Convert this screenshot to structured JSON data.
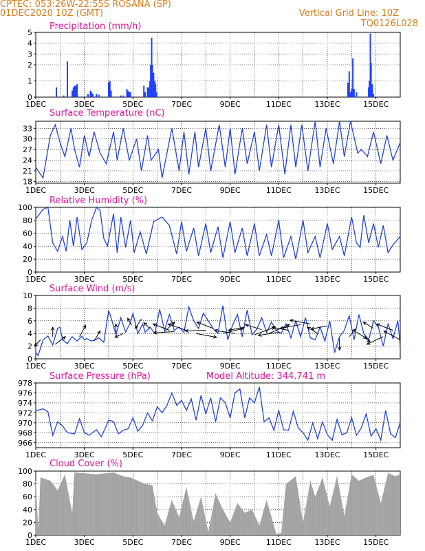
{
  "header": {
    "line1": "CPTEC:   053:26W-22:55S   ROSANA (SP)",
    "line2": "01DEC2020 10Z (GMT)",
    "grid_note": "Vertical Grid Line: 10Z",
    "code": "TQ0126L028"
  },
  "colors": {
    "header": "#e07a1a",
    "title": "#e0129a",
    "series": "#2040e0",
    "bars": "#2040ff",
    "cloud": "#a8a8a8",
    "wind_arrow": "#000000"
  },
  "chart_data": [
    {
      "type": "bar",
      "title": "Precipitation (mm/h)",
      "x_unit": "days since 01DEC 10Z",
      "xlim": [
        0,
        15
      ],
      "xticks": [
        "1DEC",
        "3DEC",
        "5DEC",
        "7DEC",
        "9DEC",
        "11DEC",
        "13DEC",
        "15DEC"
      ],
      "ylim": [
        0,
        5
      ],
      "yticks": [
        0,
        1,
        2,
        3,
        4,
        5
      ],
      "y_scale": "piecewise: 0-1-2 linear, 2 to 5 compressed",
      "bars": [
        [
          0.85,
          0.6
        ],
        [
          1.15,
          0.1
        ],
        [
          1.3,
          2.3
        ],
        [
          1.5,
          0.4
        ],
        [
          1.55,
          0.6
        ],
        [
          1.6,
          0.7
        ],
        [
          1.65,
          0.7
        ],
        [
          1.7,
          0.8
        ],
        [
          2.15,
          0.2
        ],
        [
          2.25,
          0.4
        ],
        [
          2.3,
          0.3
        ],
        [
          2.35,
          0.2
        ],
        [
          2.5,
          0.2
        ],
        [
          2.6,
          0.15
        ],
        [
          3.0,
          0.9
        ],
        [
          3.05,
          1.0
        ],
        [
          3.1,
          0.4
        ],
        [
          3.5,
          0.1
        ],
        [
          3.6,
          0.1
        ],
        [
          3.75,
          0.5
        ],
        [
          3.8,
          0.4
        ],
        [
          3.85,
          0.3
        ],
        [
          3.9,
          0.3
        ],
        [
          4.45,
          0.7
        ],
        [
          4.5,
          0.3
        ],
        [
          4.6,
          0.6
        ],
        [
          4.65,
          0.6
        ],
        [
          4.7,
          1.0
        ],
        [
          4.73,
          2.0
        ],
        [
          4.77,
          4.5
        ],
        [
          4.8,
          2.0
        ],
        [
          4.85,
          1.5
        ],
        [
          4.9,
          1.0
        ],
        [
          4.93,
          0.8
        ],
        [
          4.97,
          0.3
        ],
        [
          12.85,
          0.9
        ],
        [
          12.9,
          1.6
        ],
        [
          12.95,
          0.3
        ],
        [
          13.0,
          0.5
        ],
        [
          13.05,
          2.6
        ],
        [
          13.1,
          0.5
        ],
        [
          13.2,
          0.3
        ],
        [
          13.7,
          0.6
        ],
        [
          13.73,
          1.0
        ],
        [
          13.77,
          4.9
        ],
        [
          13.8,
          2.2
        ],
        [
          13.85,
          0.8
        ],
        [
          13.9,
          0.2
        ]
      ]
    },
    {
      "type": "line",
      "title": "Surface Temperature (nC)",
      "xlim": [
        0,
        15
      ],
      "ylim": [
        17.5,
        35
      ],
      "yticks": [
        18,
        21,
        24,
        27,
        30,
        33
      ],
      "series": [
        {
          "x": [
            0,
            0.3,
            0.6,
            0.8,
            1.0,
            1.2,
            1.45,
            1.6,
            1.8,
            2.0,
            2.2,
            2.4,
            2.65,
            2.9,
            3.2,
            3.35,
            3.6,
            3.85,
            4.15,
            4.35,
            4.6,
            4.75,
            5.05,
            5.2,
            5.6,
            5.9,
            6.1,
            6.3,
            6.55,
            6.7,
            7.0,
            7.2,
            7.55,
            7.8,
            8.0,
            8.2,
            8.5,
            8.7,
            9.0,
            9.2,
            9.5,
            9.7,
            10.0,
            10.25,
            10.5,
            10.7,
            10.95,
            11.2,
            11.5,
            11.7,
            11.95,
            12.25,
            12.5,
            12.7,
            12.95,
            13.25,
            13.4,
            13.65,
            13.9,
            14.2,
            14.45,
            14.7,
            15.0
          ],
          "y": [
            22,
            19,
            31,
            34,
            29,
            25,
            33,
            27,
            22,
            31,
            25,
            32,
            26,
            23,
            32,
            24,
            33,
            24,
            30,
            21,
            31,
            24,
            27,
            19,
            33,
            21,
            32,
            20,
            32,
            22,
            33,
            21,
            34,
            22,
            33,
            20,
            33,
            23,
            32,
            21,
            34,
            22,
            34,
            20,
            34,
            22,
            34,
            21,
            35,
            22,
            33,
            23,
            35,
            25,
            35,
            26,
            27,
            25,
            32,
            23,
            31,
            24,
            29
          ]
        }
      ]
    },
    {
      "type": "line",
      "title": "Relative Humidity (%)",
      "xlim": [
        0,
        15
      ],
      "ylim": [
        0,
        100
      ],
      "yticks": [
        0,
        20,
        40,
        60,
        80,
        100
      ],
      "series": [
        {
          "x": [
            0,
            0.3,
            0.5,
            0.7,
            0.9,
            1.1,
            1.25,
            1.4,
            1.55,
            1.7,
            1.9,
            2.1,
            2.3,
            2.5,
            2.65,
            2.8,
            2.95,
            3.2,
            3.35,
            3.5,
            3.7,
            3.9,
            4.05,
            4.3,
            4.55,
            4.85,
            5.2,
            5.5,
            5.8,
            6.0,
            6.2,
            6.5,
            6.7,
            7.0,
            7.2,
            7.5,
            7.7,
            8.0,
            8.2,
            8.5,
            8.7,
            9.0,
            9.2,
            9.5,
            9.7,
            10.0,
            10.2,
            10.5,
            10.7,
            11.0,
            11.2,
            11.5,
            11.7,
            12.0,
            12.2,
            12.5,
            12.7,
            13.0,
            13.2,
            13.35,
            13.5,
            13.7,
            13.9,
            14.1,
            14.3,
            14.5,
            14.7,
            15.0
          ],
          "y": [
            82,
            97,
            100,
            45,
            32,
            55,
            32,
            80,
            40,
            85,
            35,
            45,
            80,
            100,
            95,
            52,
            40,
            90,
            30,
            85,
            38,
            80,
            30,
            62,
            28,
            78,
            85,
            72,
            28,
            78,
            32,
            68,
            25,
            75,
            30,
            70,
            22,
            78,
            30,
            68,
            25,
            75,
            25,
            58,
            25,
            80,
            22,
            55,
            20,
            80,
            30,
            55,
            22,
            75,
            35,
            55,
            25,
            85,
            45,
            38,
            88,
            45,
            75,
            38,
            72,
            30,
            42,
            55
          ]
        }
      ]
    },
    {
      "type": "line",
      "title": "Surface Wind (m/s)",
      "xlim": [
        0,
        15
      ],
      "ylim": [
        0,
        10
      ],
      "yticks": [
        0,
        2,
        4,
        6,
        8,
        10
      ],
      "series": [
        {
          "x": [
            0,
            0.1,
            0.3,
            0.5,
            0.7,
            0.9,
            1.0,
            1.1,
            1.3,
            1.5,
            1.7,
            1.9,
            2.0,
            2.1,
            2.3,
            2.5,
            2.6,
            2.8,
            3.0,
            3.1,
            3.3,
            3.5,
            3.7,
            3.9,
            4.0,
            4.2,
            4.4,
            4.5,
            4.7,
            4.9,
            5.1,
            5.3,
            5.5,
            5.7,
            5.9,
            6.1,
            6.3,
            6.5,
            6.7,
            6.9,
            7.1,
            7.3,
            7.5,
            7.7,
            7.9,
            8.1,
            8.3,
            8.5,
            8.7,
            8.9,
            9.1,
            9.3,
            9.5,
            9.7,
            9.9,
            10.1,
            10.3,
            10.5,
            10.7,
            10.9,
            11.1,
            11.3,
            11.5,
            11.7,
            11.9,
            12.1,
            12.3,
            12.5,
            12.7,
            12.9,
            13.1,
            13.3,
            13.5,
            13.7,
            13.9,
            14.1,
            14.3,
            14.5,
            14.7,
            14.9,
            15.0
          ],
          "y": [
            1.0,
            0.5,
            3.0,
            3.6,
            2.2,
            4.8,
            5.0,
            3.0,
            2.4,
            3.5,
            2.8,
            3.6,
            3.0,
            3.2,
            2.8,
            3.1,
            3.3,
            2.6,
            7.6,
            6.5,
            3.8,
            6.5,
            4.2,
            5.8,
            7.2,
            4.0,
            5.5,
            4.2,
            5.0,
            4.0,
            7.8,
            4.5,
            7.0,
            4.5,
            5.0,
            4.2,
            8.2,
            6.0,
            4.8,
            7.2,
            6.0,
            4.8,
            4.0,
            8.4,
            3.0,
            5.3,
            7.0,
            3.5,
            7.7,
            3.8,
            4.7,
            6.5,
            4.2,
            5.8,
            4.5,
            4.0,
            5.5,
            3.3,
            6.0,
            3.5,
            6.5,
            3.3,
            3.0,
            5.0,
            2.8,
            6.0,
            1.0,
            3.5,
            4.5,
            6.8,
            3.0,
            7.0,
            4.0,
            3.0,
            6.0,
            5.0,
            2.0,
            5.5,
            3.2,
            6.0,
            2.0
          ]
        }
      ],
      "arrows": [
        [
          0.2,
          3.0,
          -0.3,
          -1.0
        ],
        [
          0.7,
          3.5,
          0.0,
          1.5
        ],
        [
          0.8,
          2.3,
          0.5,
          1.2
        ],
        [
          1.8,
          3.5,
          0.3,
          1.8
        ],
        [
          2.4,
          2.8,
          0.3,
          1.6
        ],
        [
          3.3,
          4.2,
          0.0,
          1.3
        ],
        [
          3.6,
          4.0,
          -0.4,
          -0.6
        ],
        [
          3.95,
          5.3,
          -0.2,
          1.1
        ],
        [
          4.35,
          6.3,
          -0.3,
          -1.5
        ],
        [
          4.7,
          4.8,
          -0.3,
          0.9
        ],
        [
          5.3,
          4.3,
          0.5,
          1.5
        ],
        [
          5.5,
          4.5,
          -0.8,
          1.0
        ],
        [
          5.7,
          4.3,
          -1.0,
          -0.2
        ],
        [
          6.2,
          4.5,
          -0.9,
          1.0
        ],
        [
          6.6,
          4.0,
          1.0,
          -0.6
        ],
        [
          7.0,
          4.5,
          -1.0,
          -0.1
        ],
        [
          7.3,
          4.8,
          -0.8,
          1.0
        ],
        [
          7.7,
          4.0,
          1.0,
          0.8
        ],
        [
          8.2,
          4.0,
          -1.0,
          0.5
        ],
        [
          8.6,
          5.0,
          -0.8,
          -0.5
        ],
        [
          9.0,
          3.8,
          1.0,
          1.2
        ],
        [
          9.3,
          4.6,
          -0.8,
          0.8
        ],
        [
          9.6,
          4.0,
          1.0,
          1.4
        ],
        [
          10.0,
          4.2,
          -1.0,
          -0.5
        ],
        [
          10.4,
          4.5,
          -0.8,
          0.5
        ],
        [
          10.9,
          5.4,
          -1.0,
          -0.6
        ],
        [
          11.3,
          5.5,
          -1.0,
          0.6
        ],
        [
          11.6,
          4.0,
          -0.5,
          1.0
        ],
        [
          12.0,
          5.2,
          -0.8,
          -0.5
        ],
        [
          12.5,
          3.2,
          0.0,
          -1.8
        ],
        [
          12.9,
          3.5,
          0.3,
          1.2
        ],
        [
          13.2,
          4.2,
          0.5,
          -1.0
        ],
        [
          13.5,
          3.5,
          0.3,
          -0.8
        ],
        [
          13.9,
          4.8,
          -0.5,
          1.0
        ],
        [
          14.3,
          3.5,
          -0.8,
          -1.2
        ],
        [
          14.7,
          4.5,
          -0.8,
          1.0
        ],
        [
          15.0,
          3.0,
          -0.8,
          1.4
        ]
      ]
    },
    {
      "type": "line",
      "title": "Surface Pressure (hPa)",
      "annotation": "Model Altitude: 344.741  m",
      "xlim": [
        0,
        15
      ],
      "ylim": [
        965,
        978
      ],
      "yticks": [
        966,
        968,
        970,
        972,
        974,
        976,
        978
      ],
      "series": [
        {
          "x": [
            0,
            0.3,
            0.5,
            0.7,
            0.9,
            1.1,
            1.3,
            1.6,
            1.8,
            2.0,
            2.2,
            2.5,
            2.7,
            3.0,
            3.2,
            3.4,
            3.6,
            3.8,
            4.0,
            4.2,
            4.4,
            4.6,
            4.8,
            5.0,
            5.2,
            5.4,
            5.6,
            5.8,
            6.0,
            6.2,
            6.4,
            6.6,
            6.8,
            7.0,
            7.2,
            7.4,
            7.6,
            7.8,
            8.0,
            8.2,
            8.4,
            8.6,
            8.8,
            9.0,
            9.2,
            9.4,
            9.6,
            9.8,
            10.0,
            10.2,
            10.4,
            10.6,
            10.8,
            11.0,
            11.2,
            11.4,
            11.6,
            11.8,
            12.0,
            12.2,
            12.4,
            12.6,
            12.8,
            13.0,
            13.2,
            13.4,
            13.6,
            13.8,
            14.0,
            14.2,
            14.4,
            14.6,
            14.8,
            15.0
          ],
          "y": [
            972.4,
            972.8,
            972.2,
            967.5,
            970.2,
            969.4,
            968.0,
            967.8,
            970.8,
            968.0,
            967.5,
            968.6,
            967.2,
            970.5,
            970.3,
            967.8,
            968.5,
            968.8,
            971.0,
            968.3,
            969.5,
            972.0,
            970.4,
            973.2,
            972.0,
            973.5,
            976.0,
            973.5,
            974.5,
            972.5,
            974.8,
            970.5,
            975.5,
            971.8,
            975.0,
            970.2,
            975.0,
            974.0,
            971.0,
            976.0,
            976.8,
            971.0,
            975.0,
            974.0,
            977.2,
            970.2,
            971.0,
            968.5,
            972.5,
            968.6,
            968.5,
            972.3,
            969.0,
            968.0,
            966.5,
            970.0,
            966.8,
            970.2,
            967.6,
            966.5,
            970.7,
            967.6,
            968.0,
            971.0,
            967.5,
            969.0,
            971.8,
            967.3,
            968.8,
            966.5,
            972.5,
            967.8,
            967.0,
            970.0
          ]
        }
      ]
    },
    {
      "type": "area",
      "title": "Cloud Cover (%)",
      "xlim": [
        0,
        15
      ],
      "ylim": [
        0,
        100
      ],
      "yticks": [
        0,
        20,
        40,
        60,
        80,
        100
      ],
      "series": [
        {
          "x": [
            0,
            0.1,
            0.2,
            0.6,
            0.9,
            1.2,
            1.5,
            1.6,
            2.5,
            3.2,
            3.6,
            3.9,
            4.2,
            4.5,
            4.8,
            5.0,
            5.3,
            5.6,
            5.9,
            6.2,
            6.5,
            6.8,
            7.1,
            7.4,
            7.7,
            8.0,
            8.3,
            8.6,
            8.9,
            9.2,
            9.5,
            9.9,
            10.1,
            10.3,
            10.7,
            11.0,
            11.3,
            11.5,
            11.8,
            12.1,
            12.4,
            12.7,
            13.0,
            13.3,
            13.6,
            13.9,
            14.2,
            14.5,
            14.8,
            15.0
          ],
          "y": [
            85,
            10,
            90,
            85,
            70,
            95,
            35,
            98,
            95,
            98,
            92,
            90,
            85,
            80,
            78,
            35,
            15,
            55,
            28,
            75,
            22,
            60,
            5,
            65,
            40,
            20,
            50,
            35,
            40,
            15,
            55,
            2,
            3,
            80,
            92,
            20,
            85,
            60,
            90,
            45,
            92,
            30,
            95,
            85,
            90,
            94,
            50,
            97,
            92,
            95
          ]
        }
      ]
    }
  ]
}
